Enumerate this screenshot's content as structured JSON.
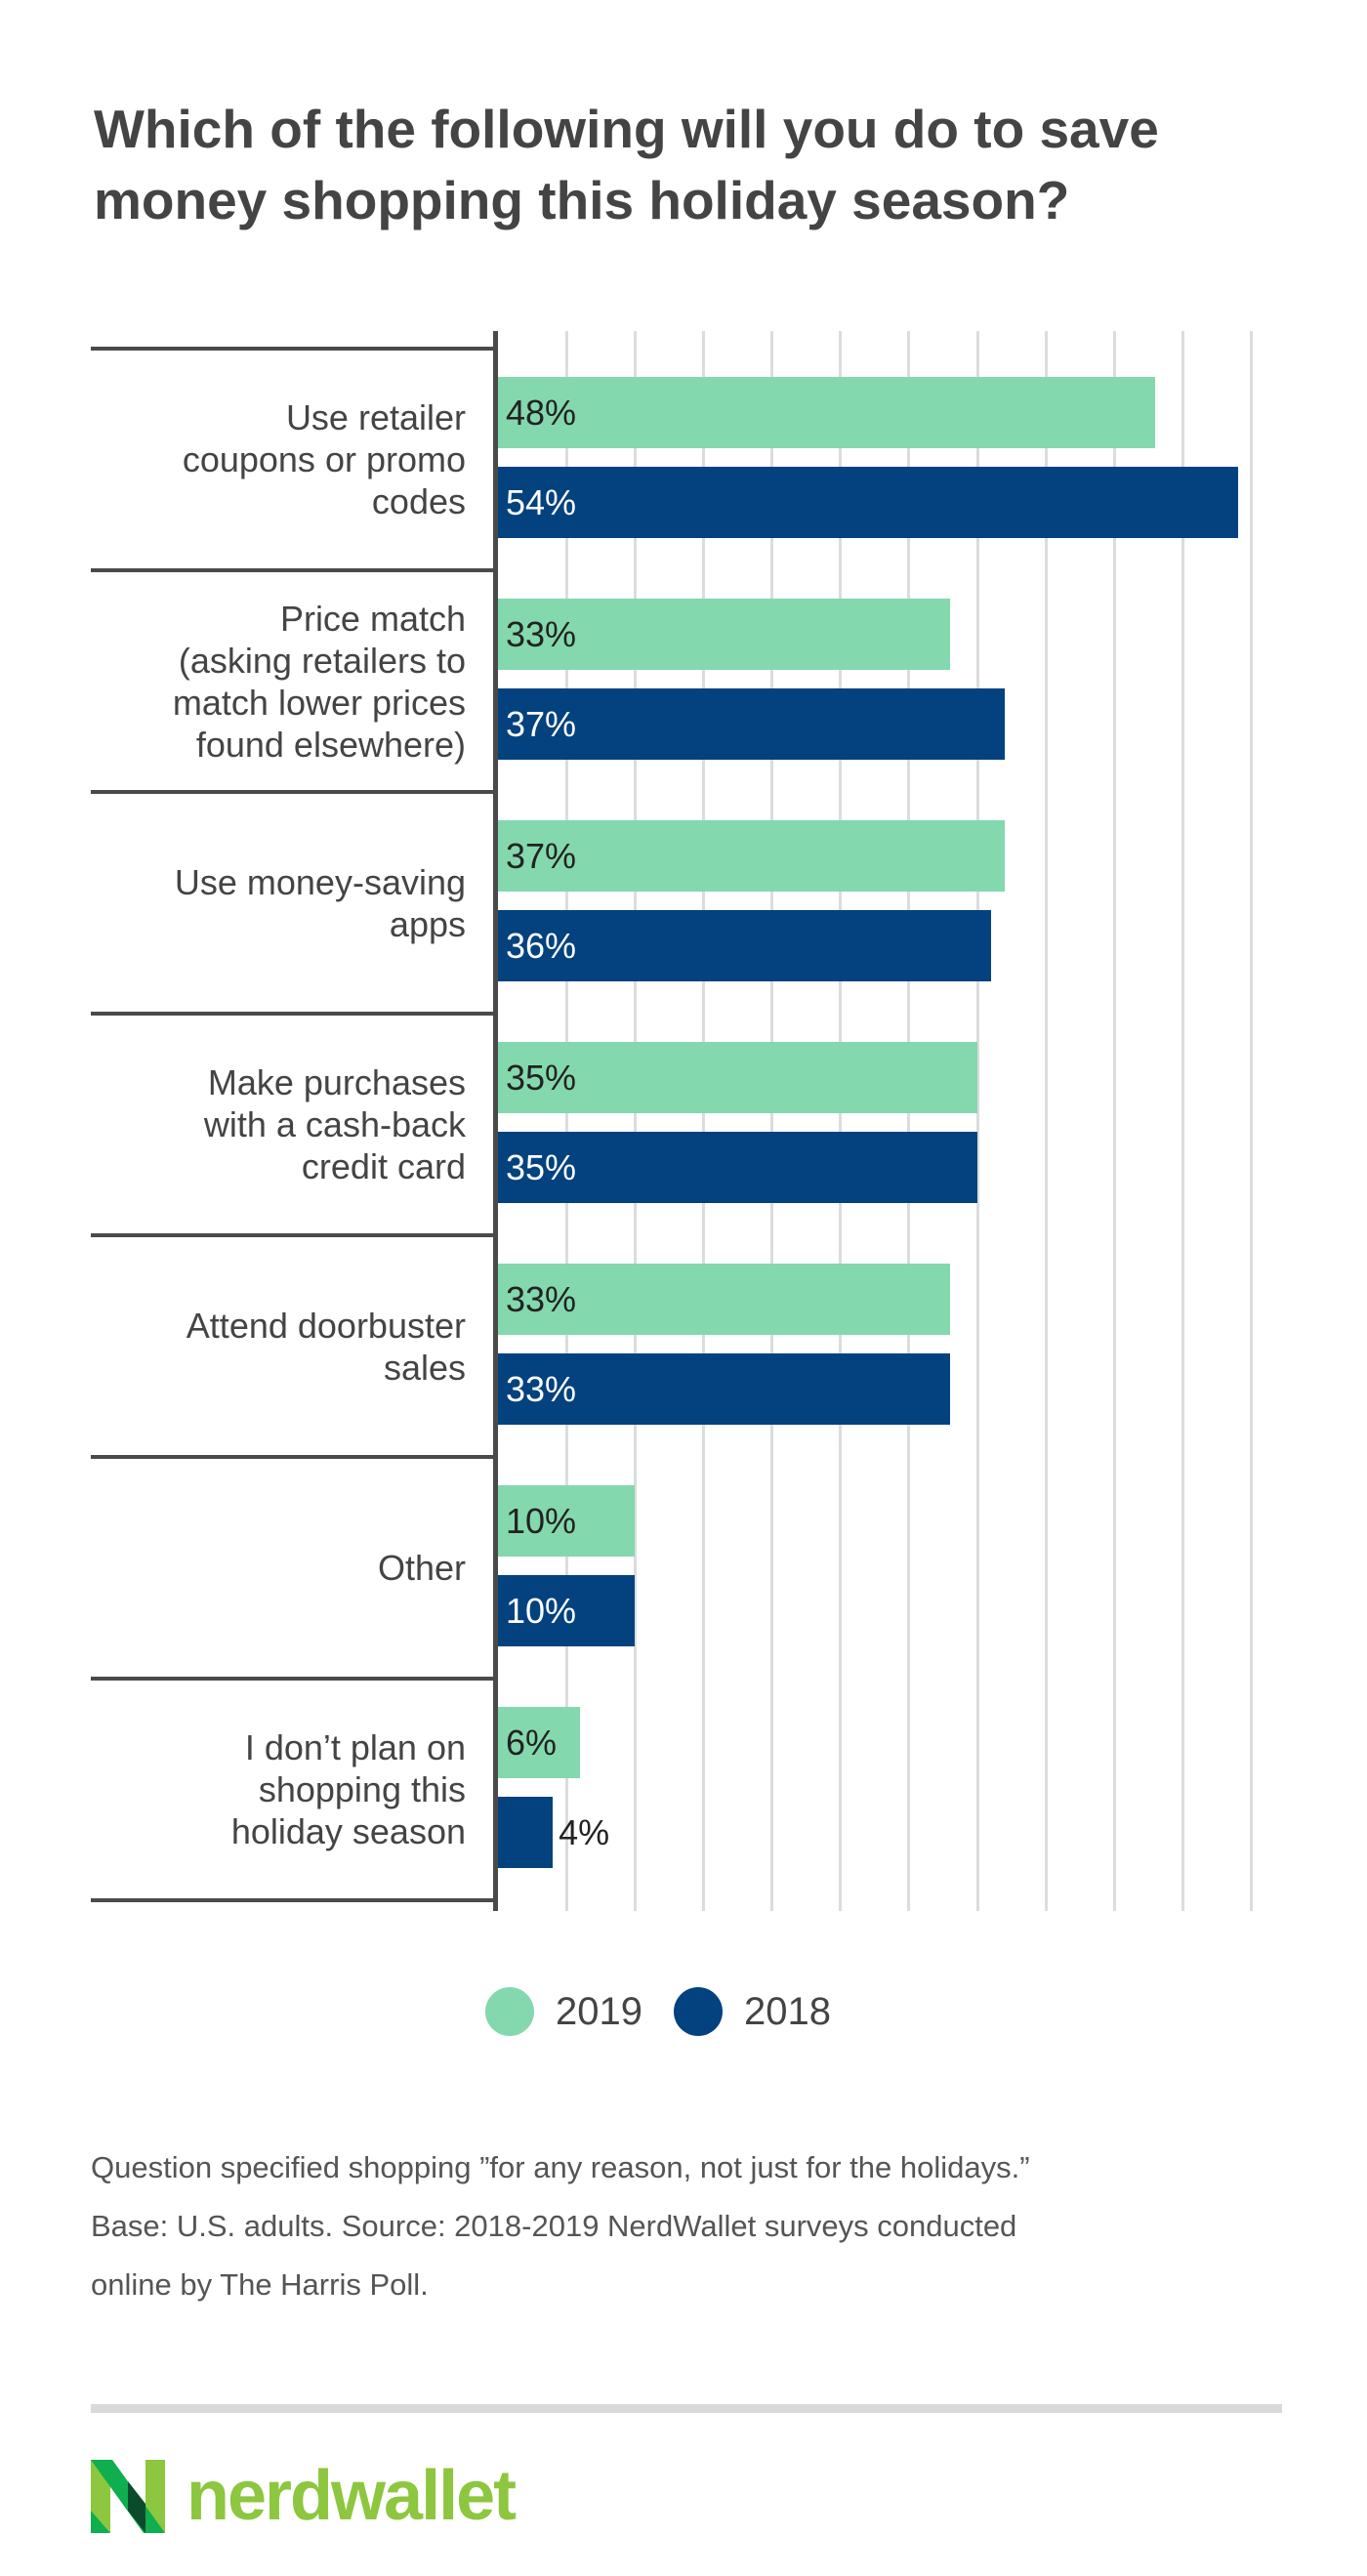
{
  "chart_data": {
    "type": "bar",
    "orientation": "horizontal",
    "title": "Which of the following will you do to save money shopping this holiday season?",
    "categories": [
      "Use retailer coupons or promo codes",
      "Price match (asking retailers to match lower prices found elsewhere)",
      "Use money-saving apps",
      "Make purchases with a cash-back credit card",
      "Attend doorbuster sales",
      "Other",
      "I don't plan on shopping this holiday season"
    ],
    "category_lines": [
      [
        "Use retailer",
        "coupons or promo",
        "codes"
      ],
      [
        "Price match",
        "(asking retailers to",
        "match lower prices",
        "found elsewhere)"
      ],
      [
        "Use money-saving",
        "apps"
      ],
      [
        "Make purchases",
        "with a cash-back",
        "credit card"
      ],
      [
        "Attend doorbuster",
        "sales"
      ],
      [
        "Other"
      ],
      [
        "I don’t plan on",
        "shopping this",
        "holiday season"
      ]
    ],
    "series": [
      {
        "name": "2019",
        "color": "#84d8ae",
        "values": [
          48,
          33,
          37,
          35,
          33,
          10,
          6
        ],
        "labels": [
          "48%",
          "33%",
          "37%",
          "35%",
          "33%",
          "10%",
          "6%"
        ]
      },
      {
        "name": "2018",
        "color": "#03427e",
        "values": [
          54,
          37,
          36,
          35,
          33,
          10,
          4
        ],
        "labels": [
          "54%",
          "37%",
          "36%",
          "35%",
          "33%",
          "10%",
          "4%"
        ]
      }
    ],
    "xlim": [
      0,
      55
    ],
    "grid_step": 5,
    "grid": true,
    "xlabel": "",
    "ylabel": "",
    "legend": "bottom-center"
  },
  "title_lines": [
    "Which of the following will you do to save",
    "money shopping this holiday season?"
  ],
  "legend": {
    "items": [
      {
        "label": "2019",
        "color": "#84d8ae"
      },
      {
        "label": "2018",
        "color": "#03427e"
      }
    ]
  },
  "footnote": [
    "Question specified shopping ”for any reason, not just for the holidays.”",
    "Base: U.S. adults. Source: 2018-2019 NerdWallet surveys conducted",
    "online by The Harris Poll."
  ],
  "brand": {
    "name": "nerdwallet",
    "color": "#8dc63f"
  }
}
